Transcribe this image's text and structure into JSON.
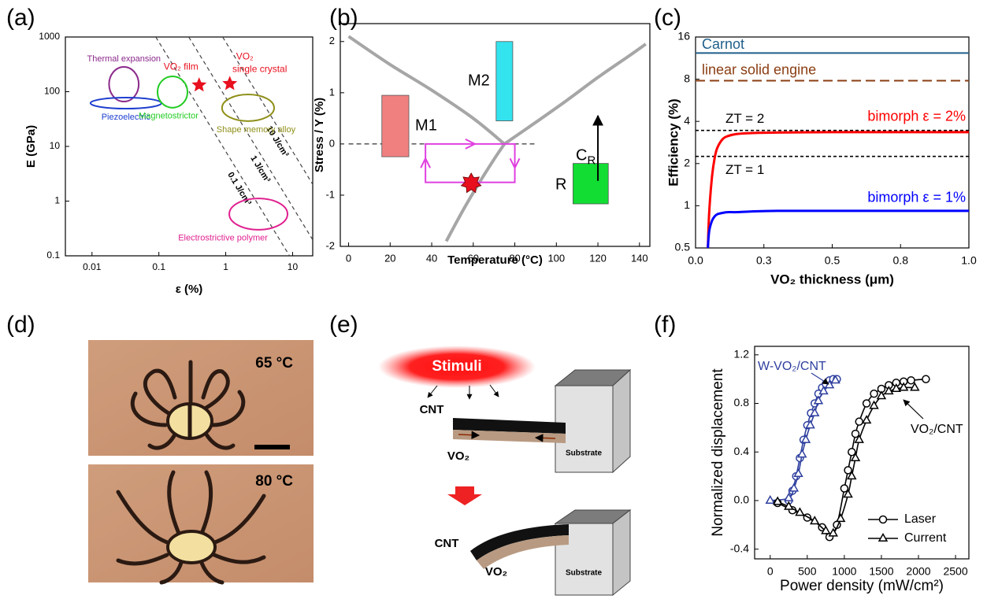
{
  "panel_labels": [
    "(a)",
    "(b)",
    "(c)",
    "(d)",
    "(e)",
    "(f)"
  ],
  "chart_data": [
    {
      "type": "scatter",
      "xlabel": "ε (%)",
      "ylabel": "E (GPa)",
      "xscale": "log",
      "yscale": "log",
      "xlim": [
        0.004,
        20
      ],
      "ylim": [
        0.1,
        1000
      ],
      "xticks": [
        0.01,
        0.1,
        1,
        10
      ],
      "yticks": [
        0.1,
        1,
        10,
        100,
        1000
      ],
      "regions": [
        {
          "name": "Thermal expansion",
          "color": "#8b2a8b",
          "x": [
            0.018,
            0.05
          ],
          "y": [
            66,
            284
          ]
        },
        {
          "name": "Piezoelectric",
          "color": "#1f3fd0",
          "x": [
            0.0095,
            0.109
          ],
          "y": [
            49,
            78
          ]
        },
        {
          "name": "Magnetostrictor",
          "color": "#22cc22",
          "x": [
            0.0955,
            0.268
          ],
          "y": [
            51,
            191
          ]
        },
        {
          "name": "Shape memory alloy",
          "color": "#8f8f1a",
          "x": [
            0.88,
            5.3
          ],
          "y": [
            29,
            89
          ]
        },
        {
          "name": "Electrostrictive polymer",
          "color": "#e0208f",
          "x": [
            1.13,
            8.4
          ],
          "y": [
            0.3,
            1.12
          ]
        }
      ],
      "points": [
        {
          "label_lines": [
            "VO₂ film"
          ],
          "color": "#e8101e",
          "x": 0.4,
          "y": 132
        },
        {
          "label_lines": [
            "VO₂",
            "single crystal"
          ],
          "color": "#e8101e",
          "x": 1.15,
          "y": 140
        }
      ],
      "energy_lines": [
        {
          "label": "0.1 J/cm³",
          "x": [
            0.09,
            9
          ],
          "y": [
            1000,
            0.1
          ]
        },
        {
          "label": "1 J/cm³",
          "x": [
            0.28,
            28
          ],
          "y": [
            1000,
            0.1
          ]
        },
        {
          "label": "10 J/cm³",
          "x": [
            0.9,
            90
          ],
          "y": [
            1000,
            0.1
          ]
        }
      ]
    },
    {
      "type": "phase",
      "xlabel": "Temperature (°C)",
      "ylabel": "Stress / Y (%)",
      "xlim": [
        -4,
        145
      ],
      "ylim": [
        -2,
        2.35
      ],
      "xticks": [
        0,
        20,
        40,
        60,
        80,
        100,
        120,
        140
      ],
      "yticks": [
        -2,
        -1,
        0,
        1,
        2
      ],
      "boundaries": {
        "color": "#a6a6a6",
        "lines": [
          {
            "x": [
              0,
              20,
              40,
              60,
              75
            ],
            "y": [
              2.1,
              1.55,
              1.05,
              0.5,
              0
            ]
          },
          {
            "x": [
              47,
              55,
              63,
              70,
              75
            ],
            "y": [
              -1.9,
              -1.3,
              -0.75,
              -0.3,
              0
            ]
          },
          {
            "x": [
              75,
              90,
              105,
              120,
              135,
              143
            ],
            "y": [
              0,
              0.42,
              0.85,
              1.3,
              1.72,
              1.95
            ]
          }
        ]
      },
      "phases": [
        {
          "name": "M1",
          "color": "#f08080",
          "x": [
            16,
            29
          ],
          "y": [
            -0.25,
            0.95
          ]
        },
        {
          "name": "M2",
          "color": "#33e3ee",
          "x": [
            71,
            79
          ],
          "y": [
            0.45,
            2.0
          ]
        },
        {
          "name": "R",
          "color": "#11dd33",
          "x": [
            108,
            125
          ],
          "y": [
            -1.17,
            -0.38
          ]
        }
      ],
      "loop": {
        "color": "#e040e0",
        "x": [
          37,
          80
        ],
        "y": [
          -0.75,
          0
        ]
      },
      "star": {
        "color": "#e8101e",
        "x": 59,
        "y": -0.77
      },
      "reference": {
        "value": 0,
        "x": [
          0,
          90
        ]
      },
      "arrow": {
        "label": {
          "main": "C",
          "sub": "R"
        },
        "x": 120,
        "y": [
          -0.72,
          0.55
        ]
      }
    },
    {
      "type": "line",
      "xlabel": "VO₂ thickness (μm)",
      "ylabel": "Efficiency (%)",
      "yscale": "log",
      "xlim": [
        0,
        1
      ],
      "ylim": [
        0.5,
        16
      ],
      "xticks": [
        {
          "value": 0,
          "label": "0.0"
        },
        {
          "value": 0.25,
          "label": "0.3"
        },
        0.5,
        {
          "value": 0.75,
          "label": "0.8"
        },
        {
          "value": 1,
          "label": "1.0"
        }
      ],
      "yticks": [
        0.5,
        1,
        2,
        4,
        8,
        16
      ],
      "hlines": [
        {
          "name": "Carnot",
          "value": 12.3,
          "color": "#1f5f8b",
          "dash": false
        },
        {
          "name": "linear solid engine",
          "value": 7.8,
          "color": "#8b3e13",
          "dash": true
        },
        {
          "name": "ZT = 2",
          "value": 3.45,
          "color": "#000000",
          "dash": true
        },
        {
          "name": "ZT = 1",
          "value": 2.25,
          "color": "#000000",
          "dash": true
        }
      ],
      "x": [
        0.045,
        0.05,
        0.06,
        0.07,
        0.08,
        0.1,
        0.12,
        0.15,
        0.2,
        0.3,
        0.5,
        0.75,
        1.0
      ],
      "series": [
        {
          "name": "bimorph ε = 2%",
          "color": "#ff0000",
          "values": [
            0.5,
            0.9,
            1.6,
            2.2,
            2.6,
            3.0,
            3.15,
            3.25,
            3.3,
            3.33,
            3.35,
            3.35,
            3.35
          ]
        },
        {
          "name": "bimorph ε = 1%",
          "color": "#0000ff",
          "values": [
            0.5,
            0.66,
            0.78,
            0.84,
            0.87,
            0.89,
            0.9,
            0.9,
            0.91,
            0.92,
            0.92,
            0.92,
            0.92
          ]
        }
      ]
    },
    {
      "type": "markerline",
      "xlabel": "Power density (mW/cm²)",
      "ylabel": "Normalized displacement",
      "xlim": [
        -210,
        2680
      ],
      "ylim": [
        -0.48,
        1.27
      ],
      "xticks": [
        0,
        500,
        1000,
        1500,
        2000,
        2500
      ],
      "yticks": [
        -0.4,
        {
          "value": 0,
          "label": "0.0"
        },
        0.4,
        0.8,
        1.2
      ],
      "legend": {
        "position": "lower right",
        "entries": [
          {
            "name": "Laser",
            "marker": "circle"
          },
          {
            "name": "Current",
            "marker": "triangle"
          }
        ]
      },
      "groups": [
        {
          "name": "W-VO₂/CNT",
          "color": "#2e3f9e",
          "series": [
            {
              "marker": "circle",
              "x": [
                250,
                300,
                350,
                400,
                450,
                500,
                550,
                600,
                650,
                700,
                750,
                800,
                850,
                900
              ],
              "values": [
                0.0,
                0.08,
                0.2,
                0.35,
                0.5,
                0.62,
                0.72,
                0.8,
                0.88,
                0.93,
                0.96,
                0.99,
                1.0,
                1.0
              ]
            },
            {
              "marker": "triangle",
              "x": [
                0,
                250,
                320,
                380,
                430,
                480,
                540,
                600,
                650,
                720,
                800,
                880
              ],
              "values": [
                0.0,
                0.02,
                0.1,
                0.22,
                0.38,
                0.5,
                0.62,
                0.72,
                0.82,
                0.9,
                0.95,
                0.99
              ]
            }
          ]
        },
        {
          "name": "VO₂/CNT",
          "color": "#000000",
          "series": [
            {
              "marker": "circle",
              "x": [
                100,
                300,
                500,
                700,
                800,
                900,
                1000,
                1050,
                1100,
                1150,
                1200,
                1300,
                1400,
                1500,
                1600,
                1700,
                1800,
                1900,
                2100
              ],
              "values": [
                -0.02,
                -0.08,
                -0.14,
                -0.22,
                -0.3,
                -0.2,
                0.1,
                0.25,
                0.4,
                0.55,
                0.65,
                0.8,
                0.88,
                0.92,
                0.95,
                0.97,
                0.98,
                0.99,
                1.0
              ]
            },
            {
              "marker": "triangle",
              "x": [
                100,
                250,
                400,
                600,
                750,
                850,
                950,
                1050,
                1100,
                1150,
                1200,
                1300,
                1400,
                1500,
                1600,
                1700,
                1800,
                1950
              ],
              "values": [
                -0.01,
                -0.05,
                -0.1,
                -0.17,
                -0.25,
                -0.27,
                -0.15,
                0.05,
                0.2,
                0.35,
                0.5,
                0.66,
                0.78,
                0.86,
                0.9,
                0.92,
                0.93,
                0.93
              ]
            }
          ]
        }
      ]
    }
  ],
  "photo": {
    "top_label": "65 °C",
    "bottom_label": "80 °C"
  },
  "diagram": {
    "stimuli": "Stimuli",
    "before": {
      "cnt": "CNT",
      "vo2": "VO₂",
      "substrate": "Substrate"
    },
    "after": {
      "cnt": "CNT",
      "vo2": "VO₂",
      "substrate": "Substrate"
    }
  }
}
